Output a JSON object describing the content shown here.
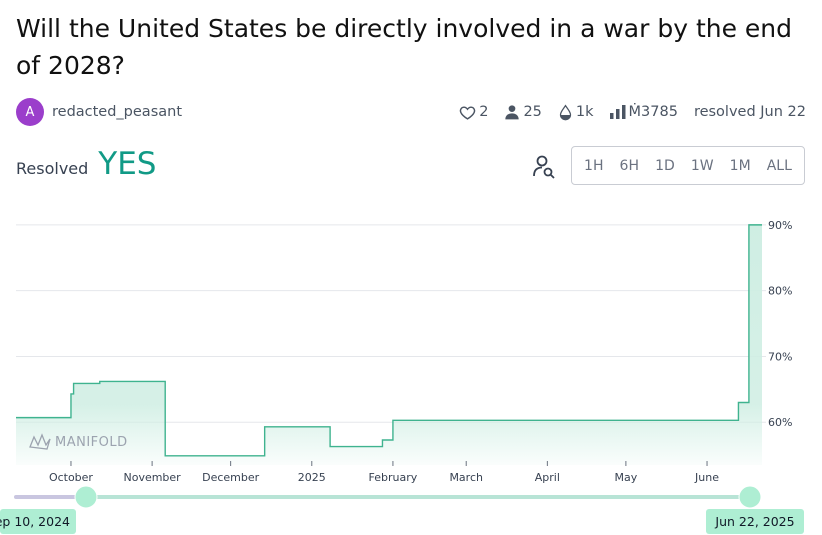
{
  "market": {
    "title": "Will the United States be directly involved in a war by the end of 2028?"
  },
  "author": {
    "avatar_letter": "A",
    "name": "redacted_peasant",
    "avatar_color": "#9b3ecb"
  },
  "stats": {
    "likes": "2",
    "traders": "25",
    "comments": "1k",
    "volume": "Ṁ3785",
    "resolved_text": "resolved Jun 22"
  },
  "resolution": {
    "label": "Resolved",
    "value": "YES",
    "color": "#119a86"
  },
  "time_range": {
    "options": [
      "1H",
      "6H",
      "1D",
      "1W",
      "1M",
      "ALL"
    ]
  },
  "watermark": "MANIFOLD",
  "slider": {
    "start_label": "ep 10, 2024",
    "end_label": "Jun 22, 2025"
  },
  "chart_data": {
    "type": "area",
    "y_ticks": [
      "90%",
      "80%",
      "70%",
      "60%"
    ],
    "y_tick_values": [
      90,
      80,
      70,
      60
    ],
    "ylim": [
      53.5,
      91.5
    ],
    "xlim": [
      "2024-09-10",
      "2025-06-22"
    ],
    "x_ticks": [
      {
        "label": "October",
        "date": "2024-10-01"
      },
      {
        "label": "November",
        "date": "2024-11-01"
      },
      {
        "label": "December",
        "date": "2024-12-01"
      },
      {
        "label": "2025",
        "date": "2025-01-01"
      },
      {
        "label": "February",
        "date": "2025-02-01"
      },
      {
        "label": "March",
        "date": "2025-03-01"
      },
      {
        "label": "April",
        "date": "2025-04-01"
      },
      {
        "label": "May",
        "date": "2025-05-01"
      },
      {
        "label": "June",
        "date": "2025-06-01"
      }
    ],
    "series": [
      {
        "step": true,
        "points": [
          {
            "x": "2024-09-10",
            "y": 60.7
          },
          {
            "x": "2024-10-01",
            "y": 64.3
          },
          {
            "x": "2024-10-02",
            "y": 65.9
          },
          {
            "x": "2024-10-12",
            "y": 66.2
          },
          {
            "x": "2024-11-06",
            "y": 54.9
          },
          {
            "x": "2024-12-14",
            "y": 59.3
          },
          {
            "x": "2025-01-08",
            "y": 56.3
          },
          {
            "x": "2025-01-28",
            "y": 57.3
          },
          {
            "x": "2025-02-01",
            "y": 60.3
          },
          {
            "x": "2025-06-13",
            "y": 63.0
          },
          {
            "x": "2025-06-17",
            "y": 90.0
          },
          {
            "x": "2025-06-22",
            "y": 90.0
          }
        ]
      }
    ],
    "line_color": "#3fb38f",
    "fill_color": "#cfeee3",
    "grid": true
  }
}
